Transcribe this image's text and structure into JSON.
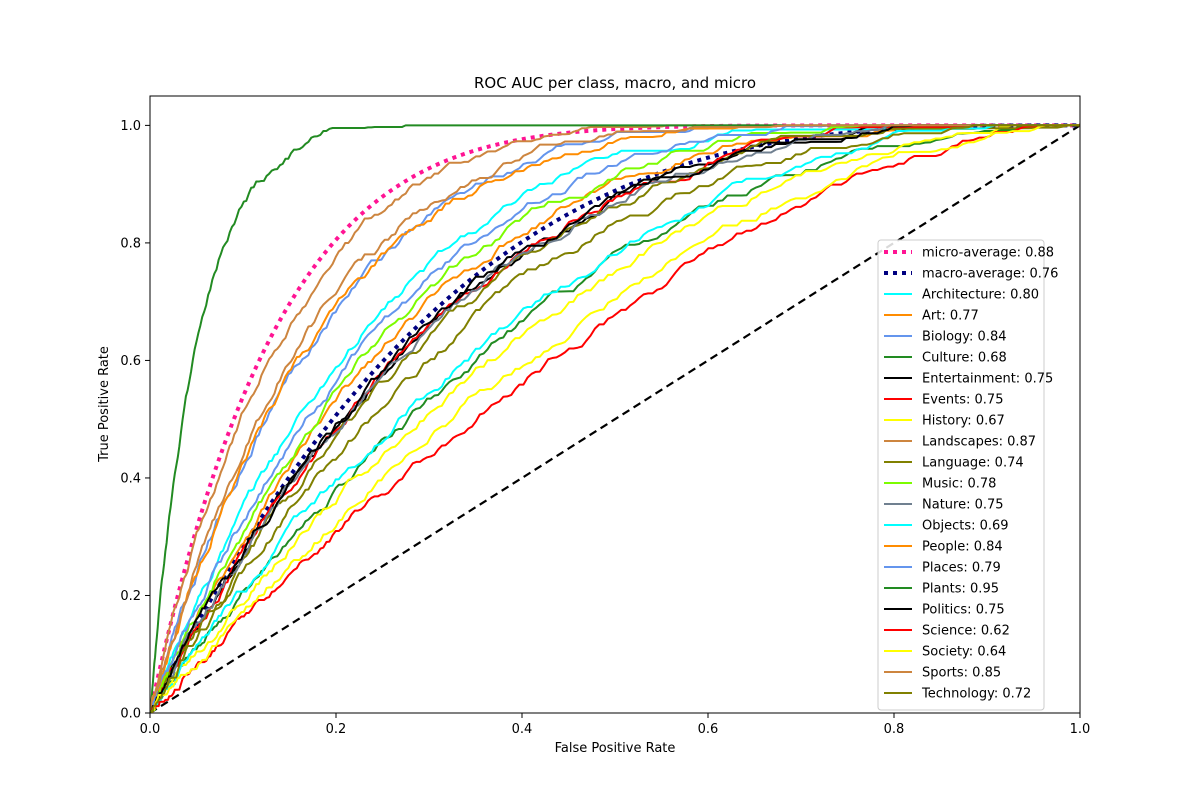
{
  "chart_data": {
    "type": "line",
    "title": "ROC AUC per class, macro, and micro",
    "xlabel": "False Positive Rate",
    "ylabel": "True Positive Rate",
    "xlim": [
      0.0,
      1.0
    ],
    "ylim": [
      0.0,
      1.05
    ],
    "xticks": [
      0.0,
      0.2,
      0.4,
      0.6,
      0.8,
      1.0
    ],
    "yticks": [
      0.0,
      0.2,
      0.4,
      0.6,
      0.8,
      1.0
    ],
    "xtick_labels": [
      "0.0",
      "0.2",
      "0.4",
      "0.6",
      "0.8",
      "1.0"
    ],
    "ytick_labels": [
      "0.0",
      "0.2",
      "0.4",
      "0.6",
      "0.8",
      "1.0"
    ],
    "grid": false,
    "legend_position": "center-right",
    "reference_line": {
      "style": "dashed",
      "color": "#000000",
      "x": [
        0,
        1
      ],
      "y": [
        0,
        1
      ]
    },
    "series": [
      {
        "name": "micro-average: 0.88",
        "color": "#ff1493",
        "style": "dotted",
        "auc": 0.88
      },
      {
        "name": "macro-average: 0.76",
        "color": "#000080",
        "style": "dotted",
        "auc": 0.76
      },
      {
        "name": "Architecture: 0.80",
        "color": "#00ffff",
        "style": "solid",
        "auc": 0.8
      },
      {
        "name": "Art: 0.77",
        "color": "#ff8c00",
        "style": "solid",
        "auc": 0.77
      },
      {
        "name": "Biology: 0.84",
        "color": "#6495ed",
        "style": "solid",
        "auc": 0.84
      },
      {
        "name": "Culture: 0.68",
        "color": "#228b22",
        "style": "solid",
        "auc": 0.68
      },
      {
        "name": "Entertainment: 0.75",
        "color": "#000000",
        "style": "solid",
        "auc": 0.75
      },
      {
        "name": "Events: 0.75",
        "color": "#ff0000",
        "style": "solid",
        "auc": 0.75
      },
      {
        "name": "History: 0.67",
        "color": "#ffff00",
        "style": "solid",
        "auc": 0.67
      },
      {
        "name": "Landscapes: 0.87",
        "color": "#cd853f",
        "style": "solid",
        "auc": 0.87
      },
      {
        "name": "Language: 0.74",
        "color": "#808000",
        "style": "solid",
        "auc": 0.74
      },
      {
        "name": "Music: 0.78",
        "color": "#7cfc00",
        "style": "solid",
        "auc": 0.78
      },
      {
        "name": "Nature: 0.75",
        "color": "#708090",
        "style": "solid",
        "auc": 0.75
      },
      {
        "name": "Objects: 0.69",
        "color": "#00ffff",
        "style": "solid",
        "auc": 0.69
      },
      {
        "name": "People: 0.84",
        "color": "#ff8c00",
        "style": "solid",
        "auc": 0.84
      },
      {
        "name": "Places: 0.79",
        "color": "#6495ed",
        "style": "solid",
        "auc": 0.79
      },
      {
        "name": "Plants: 0.95",
        "color": "#228b22",
        "style": "solid",
        "auc": 0.95
      },
      {
        "name": "Politics: 0.75",
        "color": "#000000",
        "style": "solid",
        "auc": 0.75
      },
      {
        "name": "Science: 0.62",
        "color": "#ff0000",
        "style": "solid",
        "auc": 0.62
      },
      {
        "name": "Society: 0.64",
        "color": "#ffff00",
        "style": "solid",
        "auc": 0.64
      },
      {
        "name": "Sports: 0.85",
        "color": "#cd853f",
        "style": "solid",
        "auc": 0.85
      },
      {
        "name": "Technology: 0.72",
        "color": "#808000",
        "style": "solid",
        "auc": 0.72
      }
    ]
  }
}
